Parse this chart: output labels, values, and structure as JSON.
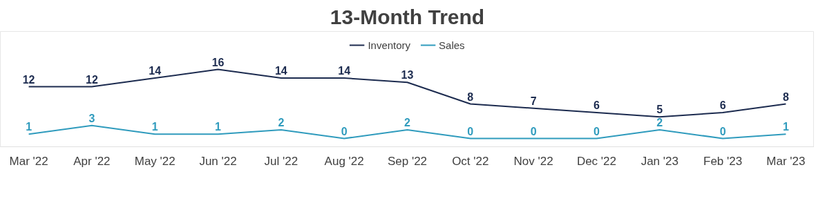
{
  "chart_data": {
    "type": "line",
    "title": "13-Month Trend",
    "categories": [
      "Mar '22",
      "Apr '22",
      "May '22",
      "Jun '22",
      "Jul '22",
      "Aug '22",
      "Sep '22",
      "Oct '22",
      "Nov '22",
      "Dec '22",
      "Jan '23",
      "Feb '23",
      "Mar '23"
    ],
    "series": [
      {
        "name": "Inventory",
        "color": "#1c2b4f",
        "values": [
          12,
          12,
          14,
          16,
          14,
          14,
          13,
          8,
          7,
          6,
          5,
          6,
          8
        ]
      },
      {
        "name": "Sales",
        "color": "#2f9bbd",
        "values": [
          1,
          3,
          1,
          1,
          2,
          0,
          2,
          0,
          0,
          0,
          2,
          0,
          1
        ]
      }
    ],
    "data_labels": true,
    "legend": "top",
    "grid": false,
    "line_style": "solid"
  }
}
